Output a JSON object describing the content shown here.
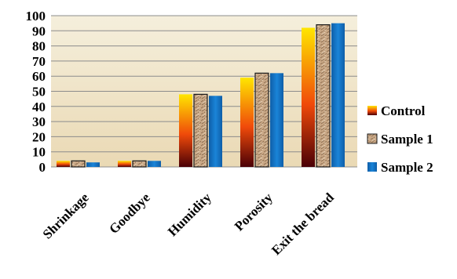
{
  "chart_data": {
    "type": "bar",
    "title": "",
    "xlabel": "",
    "ylabel": "",
    "categories": [
      "Shrinkage",
      "Goodbye",
      "Humidity",
      "Porosity",
      "Exit the bread"
    ],
    "series": [
      {
        "name": "Control",
        "values": [
          4,
          4,
          48,
          59,
          92
        ]
      },
      {
        "name": "Sample 1",
        "values": [
          4,
          4,
          48,
          62,
          94
        ]
      },
      {
        "name": "Sample 2",
        "values": [
          3,
          4,
          47,
          62,
          95
        ]
      }
    ],
    "ylim": [
      0,
      100
    ],
    "yticks": [
      0,
      10,
      20,
      30,
      40,
      50,
      60,
      70,
      80,
      90,
      100
    ],
    "grid": true,
    "legend_position": "right",
    "colors": {
      "plot_background_top": "#f5efdc",
      "plot_background_bottom": "#ead9b4",
      "gridline": "#8c8c8c",
      "control_top": "#ffe600",
      "control_mid": "#f04a0a",
      "control_bottom": "#4a0006",
      "sample1_fill": "#c9a886",
      "sample1_edge": "#1a1a1a",
      "sample2_fill": "#1676c8"
    }
  }
}
